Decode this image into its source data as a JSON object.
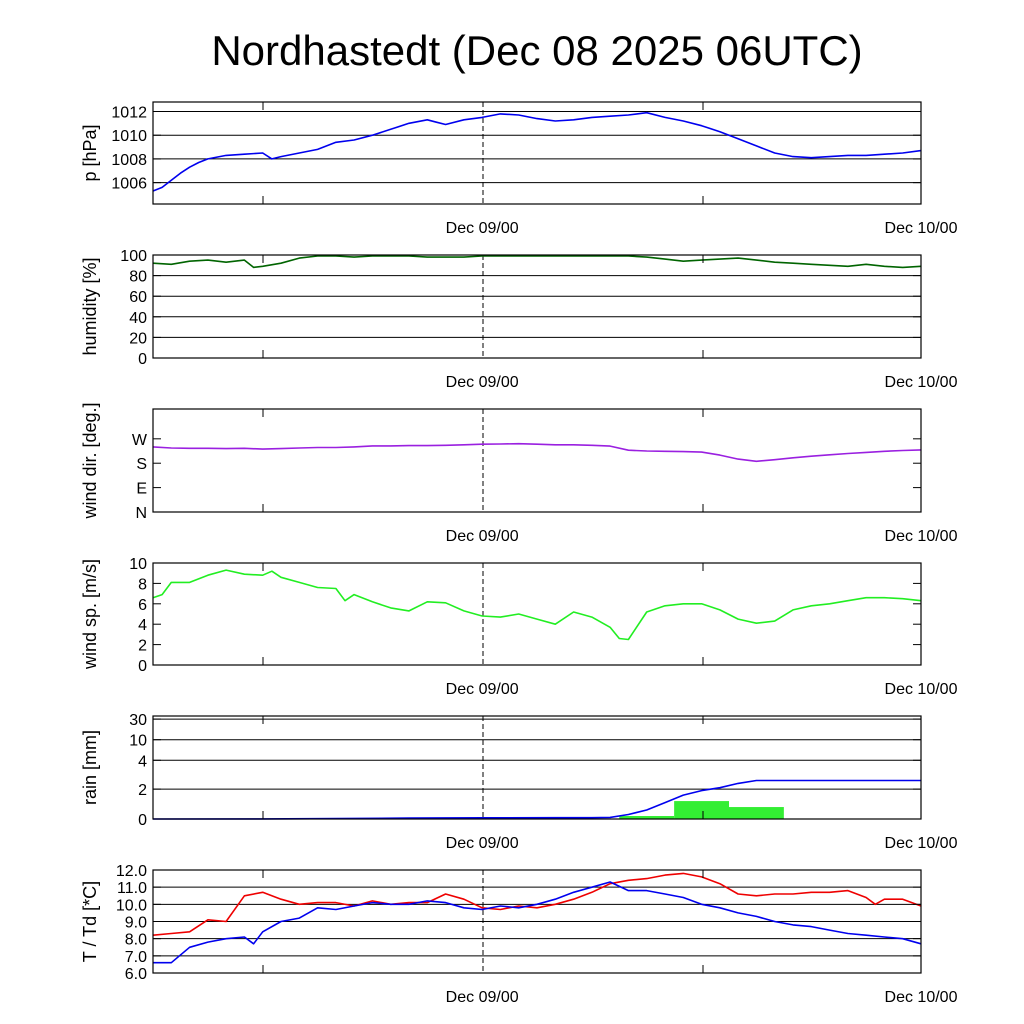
{
  "title": "Nordhastedt (Dec 08 2025 06UTC)",
  "colors": {
    "pressure": "#0000ee",
    "humidity": "#006400",
    "wind_dir": "#9a20e0",
    "wind_speed": "#22ee22",
    "rain_total": "#0000ee",
    "rain_bars": "#33ee33",
    "temperature": "#ee0000",
    "dewpoint": "#0000ee"
  },
  "chart_data": [
    {
      "type": "line",
      "name": "pressure",
      "ylabel": "p [hPa]",
      "ylim": [
        1004.2,
        1012.8
      ],
      "yticks": [
        1006,
        1008,
        1010,
        1012
      ],
      "ytick_labels": [
        "1006",
        "1008",
        "1010",
        "1012"
      ],
      "grid": true,
      "xlim": [
        0,
        42
      ],
      "x_tick_labels": [
        {
          "x": 18,
          "label": "Dec 09/00"
        },
        {
          "x": 42,
          "label": "Dec 10/00"
        }
      ],
      "series": [
        {
          "color": "pressure",
          "x": [
            0,
            0.5,
            1,
            1.5,
            2,
            2.5,
            3,
            4,
            5,
            6,
            6.5,
            7,
            8,
            9,
            10,
            11,
            12,
            13,
            14,
            15,
            15.5,
            16,
            17,
            18,
            19,
            20,
            21,
            22,
            23,
            24,
            25,
            26,
            27,
            28,
            29,
            30,
            31,
            32,
            33,
            34,
            35,
            36,
            37,
            38,
            39,
            40,
            41,
            42
          ],
          "y": [
            1005.3,
            1005.6,
            1006.2,
            1006.8,
            1007.3,
            1007.7,
            1008.0,
            1008.3,
            1008.4,
            1008.5,
            1008.0,
            1008.2,
            1008.5,
            1008.8,
            1009.4,
            1009.6,
            1010.0,
            1010.5,
            1011.0,
            1011.3,
            1011.1,
            1010.9,
            1011.3,
            1011.5,
            1011.8,
            1011.7,
            1011.4,
            1011.2,
            1011.3,
            1011.5,
            1011.6,
            1011.7,
            1011.9,
            1011.5,
            1011.2,
            1010.8,
            1010.3,
            1009.7,
            1009.1,
            1008.5,
            1008.2,
            1008.1,
            1008.2,
            1008.3,
            1008.3,
            1008.4,
            1008.5,
            1008.7
          ]
        }
      ]
    },
    {
      "type": "line",
      "name": "humidity",
      "ylabel": "humidity [%]",
      "ylim": [
        0,
        100
      ],
      "yticks": [
        0,
        20,
        40,
        60,
        80,
        100
      ],
      "ytick_labels": [
        "0",
        "20",
        "40",
        "60",
        "80",
        "100"
      ],
      "grid": true,
      "xlim": [
        0,
        42
      ],
      "x_tick_labels": [
        {
          "x": 18,
          "label": "Dec 09/00"
        },
        {
          "x": 42,
          "label": "Dec 10/00"
        }
      ],
      "series": [
        {
          "color": "humidity",
          "x": [
            0,
            1,
            2,
            3,
            4,
            5,
            5.5,
            6,
            7,
            8,
            9,
            10,
            11,
            12,
            13,
            14,
            15,
            16,
            17,
            18,
            19,
            20,
            21,
            22,
            23,
            24,
            25,
            26,
            27,
            28,
            29,
            30,
            31,
            32,
            33,
            34,
            35,
            36,
            37,
            38,
            39,
            40,
            41,
            42
          ],
          "y": [
            92,
            91,
            94,
            95,
            93,
            95,
            88,
            89,
            92,
            97,
            99,
            99,
            98,
            99,
            99,
            99,
            98,
            98,
            98,
            99,
            99,
            99,
            99,
            99,
            99,
            99,
            99,
            99,
            98,
            96,
            94,
            95,
            96,
            97,
            95,
            93,
            92,
            91,
            90,
            89,
            91,
            89,
            88,
            89
          ]
        }
      ]
    },
    {
      "type": "line",
      "name": "wind_direction",
      "ylabel": "wind dir. [deg.]",
      "ylim": [
        0,
        380
      ],
      "yticks": [
        0,
        90,
        180,
        270
      ],
      "ytick_labels": [
        "N",
        "E",
        "S",
        "W"
      ],
      "grid": false,
      "xlim": [
        0,
        42
      ],
      "x_tick_labels": [
        {
          "x": 18,
          "label": "Dec 09/00"
        },
        {
          "x": 42,
          "label": "Dec 10/00"
        }
      ],
      "series": [
        {
          "color": "wind_dir",
          "x": [
            0,
            1,
            2,
            3,
            4,
            5,
            6,
            7,
            8,
            9,
            10,
            11,
            12,
            13,
            14,
            15,
            16,
            17,
            18,
            19,
            20,
            21,
            22,
            23,
            24,
            25,
            26,
            27,
            28,
            29,
            30,
            31,
            32,
            33,
            34,
            35,
            36,
            37,
            38,
            39,
            40,
            41,
            42
          ],
          "y": [
            240,
            236,
            235,
            235,
            234,
            235,
            232,
            234,
            236,
            238,
            238,
            240,
            244,
            244,
            245,
            245,
            246,
            248,
            250,
            251,
            252,
            250,
            248,
            248,
            246,
            243,
            228,
            225,
            224,
            223,
            221,
            210,
            195,
            187,
            193,
            200,
            206,
            211,
            216,
            220,
            224,
            227,
            229
          ]
        }
      ]
    },
    {
      "type": "line",
      "name": "wind_speed",
      "ylabel": "wind sp. [m/s]",
      "ylim": [
        0,
        10
      ],
      "yticks": [
        0,
        2,
        4,
        6,
        8,
        10
      ],
      "ytick_labels": [
        "0",
        "2",
        "4",
        "6",
        "8",
        "10"
      ],
      "grid": false,
      "xlim": [
        0,
        42
      ],
      "x_tick_labels": [
        {
          "x": 18,
          "label": "Dec 09/00"
        },
        {
          "x": 42,
          "label": "Dec 10/00"
        }
      ],
      "series": [
        {
          "color": "wind_speed",
          "x": [
            0,
            0.5,
            1,
            2,
            3,
            4,
            5,
            6,
            6.5,
            7,
            8,
            9,
            10,
            10.5,
            11,
            12,
            13,
            14,
            15,
            16,
            17,
            18,
            19,
            20,
            21,
            22,
            23,
            24,
            25,
            25.5,
            26,
            27,
            28,
            29,
            30,
            31,
            32,
            33,
            34,
            35,
            36,
            37,
            38,
            39,
            40,
            41,
            42
          ],
          "y": [
            6.6,
            6.9,
            8.1,
            8.1,
            8.8,
            9.3,
            8.9,
            8.8,
            9.2,
            8.6,
            8.1,
            7.6,
            7.5,
            6.3,
            6.9,
            6.2,
            5.6,
            5.3,
            6.2,
            6.1,
            5.3,
            4.8,
            4.7,
            5.0,
            4.5,
            4.0,
            5.2,
            4.7,
            3.7,
            2.6,
            2.5,
            5.2,
            5.8,
            6.0,
            6.0,
            5.4,
            4.5,
            4.1,
            4.3,
            5.4,
            5.8,
            6.0,
            6.3,
            6.6,
            6.6,
            6.5,
            6.3
          ]
        }
      ]
    },
    {
      "type": "line",
      "name": "rain",
      "ylabel": "rain [mm]",
      "ylim": [
        0,
        30
      ],
      "yticks": [
        0,
        2,
        4,
        10,
        30
      ],
      "ytick_labels": [
        "0",
        "2",
        "4",
        "10",
        "30"
      ],
      "grid": true,
      "xlim": [
        0,
        42
      ],
      "x_tick_labels": [
        {
          "x": 18,
          "label": "Dec 09/00"
        },
        {
          "x": 42,
          "label": "Dec 10/00"
        }
      ],
      "series": [
        {
          "color": "rain_total",
          "x": [
            0,
            6,
            10,
            14,
            18,
            22,
            24,
            25,
            26,
            27,
            28,
            29,
            30,
            31,
            32,
            33,
            42
          ],
          "y": [
            0,
            0.01,
            0.03,
            0.06,
            0.08,
            0.09,
            0.09,
            0.11,
            0.3,
            0.6,
            1.1,
            1.6,
            1.9,
            2.1,
            2.4,
            2.6,
            2.6
          ]
        }
      ],
      "bars": [
        {
          "color": "rain_bars",
          "x_start": 25.5,
          "x_end": 28.5,
          "value": 0.2
        },
        {
          "color": "rain_bars",
          "x_start": 28.5,
          "x_end": 31.5,
          "value": 1.2
        },
        {
          "color": "rain_bars",
          "x_start": 31.5,
          "x_end": 34.5,
          "value": 0.8
        }
      ]
    },
    {
      "type": "line",
      "name": "temperature_dewpoint",
      "ylabel": "T / Td [*C]",
      "ylim": [
        6.0,
        12.0
      ],
      "yticks": [
        6.0,
        7.0,
        8.0,
        9.0,
        10.0,
        11.0,
        12.0
      ],
      "ytick_labels": [
        "6.0",
        "7.0",
        "8.0",
        "9.0",
        "10.0",
        "11.0",
        "12.0"
      ],
      "grid": true,
      "xlim": [
        0,
        42
      ],
      "x_tick_labels": [
        {
          "x": 18,
          "label": "Dec 09/00"
        },
        {
          "x": 42,
          "label": "Dec 10/00"
        }
      ],
      "series": [
        {
          "color": "temperature",
          "x": [
            0,
            1,
            2,
            3,
            4,
            5,
            6,
            7,
            8,
            9,
            10,
            11,
            12,
            13,
            14,
            15,
            16,
            17,
            18,
            19,
            20,
            21,
            22,
            23,
            24,
            25,
            26,
            27,
            28,
            29,
            30,
            31,
            32,
            33,
            34,
            35,
            36,
            37,
            38,
            39,
            39.5,
            40,
            41,
            42
          ],
          "y": [
            8.2,
            8.3,
            8.4,
            9.1,
            9.0,
            10.5,
            10.7,
            10.3,
            10.0,
            10.1,
            10.1,
            9.9,
            10.2,
            10.0,
            10.1,
            10.1,
            10.6,
            10.3,
            9.8,
            9.7,
            9.9,
            9.8,
            10.0,
            10.3,
            10.7,
            11.2,
            11.4,
            11.5,
            11.7,
            11.8,
            11.6,
            11.2,
            10.6,
            10.5,
            10.6,
            10.6,
            10.7,
            10.7,
            10.8,
            10.4,
            10.0,
            10.3,
            10.3,
            9.9
          ]
        },
        {
          "color": "dewpoint",
          "x": [
            0,
            1,
            2,
            3,
            4,
            5,
            5.5,
            6,
            7,
            8,
            9,
            10,
            11,
            12,
            13,
            14,
            15,
            16,
            17,
            18,
            19,
            20,
            21,
            22,
            23,
            24,
            25,
            26,
            27,
            28,
            29,
            30,
            31,
            32,
            33,
            34,
            35,
            36,
            37,
            38,
            39,
            40,
            41,
            42
          ],
          "y": [
            6.6,
            6.6,
            7.5,
            7.8,
            8.0,
            8.1,
            7.7,
            8.4,
            9.0,
            9.2,
            9.8,
            9.7,
            9.9,
            10.1,
            10.0,
            10.0,
            10.2,
            10.1,
            9.8,
            9.7,
            9.9,
            9.8,
            10.0,
            10.3,
            10.7,
            11.0,
            11.3,
            10.8,
            10.8,
            10.6,
            10.4,
            10.0,
            9.8,
            9.5,
            9.3,
            9.0,
            8.8,
            8.7,
            8.5,
            8.3,
            8.2,
            8.1,
            8.0,
            7.7
          ]
        }
      ]
    }
  ]
}
